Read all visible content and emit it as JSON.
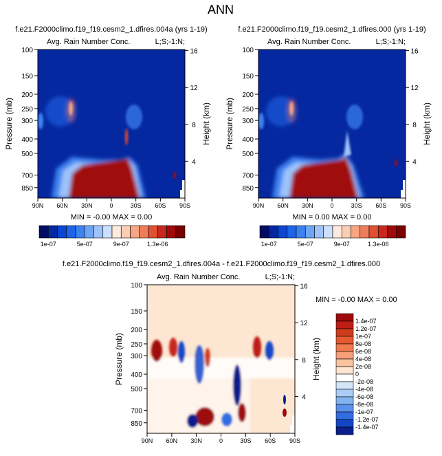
{
  "page_title": "ANN",
  "chart_data": [
    {
      "type": "heatmap",
      "title": "f.e21.F2000climo.f19_f19.cesm2_1.dfires.004a (yrs 1-19)",
      "subtitle_left": "Avg. Rain Number Conc.",
      "subtitle_right": "L;S;-1:N;",
      "xlabel": "",
      "ylabel": "Pressure (mb)",
      "y2label": "Height (km)",
      "x_ticks": [
        "90N",
        "60N",
        "30N",
        "0",
        "30S",
        "60S",
        "90S"
      ],
      "x_lim": [
        90,
        -90
      ],
      "y_ticks": [
        100,
        150,
        200,
        250,
        300,
        400,
        500,
        700,
        850
      ],
      "y_lim": [
        1000,
        100
      ],
      "y_scale": "log",
      "y2_ticks": [
        4,
        8,
        12,
        16
      ],
      "minmax_text": "MIN = -0.00   MAX =  0.00",
      "colorbar": {
        "orientation": "horizontal",
        "labels": [
          "1e-07",
          "5e-07",
          "9e-07",
          "1.3e-06"
        ],
        "colors": [
          "#020c64",
          "#0528a0",
          "#0a46d2",
          "#1e64e6",
          "#3c82f0",
          "#6ea5f5",
          "#9ec3fa",
          "#ccdffc",
          "#fdeade",
          "#fbcdb3",
          "#f7a582",
          "#f07d5a",
          "#e05032",
          "#c8281e",
          "#a00a0a",
          "#7a0000"
        ]
      }
    },
    {
      "type": "heatmap",
      "title": "f.e21.F2000climo.f19_f19.cesm2_1.dfires.000 (yrs 1-19)",
      "subtitle_left": "Avg. Rain Number Conc.",
      "subtitle_right": "L;S;-1:N;",
      "xlabel": "",
      "ylabel": "Pressure (mb)",
      "y2label": "Height (km)",
      "x_ticks": [
        "90N",
        "60N",
        "30N",
        "0",
        "30S",
        "60S",
        "90S"
      ],
      "x_lim": [
        90,
        -90
      ],
      "y_ticks": [
        100,
        150,
        200,
        250,
        300,
        400,
        500,
        700,
        850
      ],
      "y_lim": [
        1000,
        100
      ],
      "y_scale": "log",
      "y2_ticks": [
        4,
        8,
        12,
        16
      ],
      "minmax_text": "MIN =  0.00   MAX =  0.00",
      "colorbar": {
        "orientation": "horizontal",
        "labels": [
          "1e-07",
          "5e-07",
          "9e-07",
          "1.3e-06"
        ],
        "colors": [
          "#020c64",
          "#0528a0",
          "#0a46d2",
          "#1e64e6",
          "#3c82f0",
          "#6ea5f5",
          "#9ec3fa",
          "#ccdffc",
          "#fdeade",
          "#fbcdb3",
          "#f7a582",
          "#f07d5a",
          "#e05032",
          "#c8281e",
          "#a00a0a",
          "#7a0000"
        ]
      }
    },
    {
      "type": "heatmap",
      "title": "f.e21.F2000climo.f19_f19.cesm2_1.dfires.004a - f.e21.F2000climo.f19_f19.cesm2_1.dfires.000",
      "subtitle_left": "Avg. Rain Number Conc.",
      "subtitle_right": "L;S;-1:N;",
      "xlabel": "",
      "ylabel": "Pressure (mb)",
      "y2label": "Height (km)",
      "x_ticks": [
        "90N",
        "60N",
        "30N",
        "0",
        "30S",
        "60S",
        "90S"
      ],
      "x_lim": [
        90,
        -90
      ],
      "y_ticks": [
        100,
        150,
        200,
        250,
        300,
        400,
        500,
        700,
        850
      ],
      "y_lim": [
        1000,
        100
      ],
      "y_scale": "log",
      "y2_ticks": [
        4,
        8,
        12,
        16
      ],
      "minmax_text": "MIN = -0.00   MAX =  0.00",
      "colorbar": {
        "orientation": "vertical",
        "labels": [
          "1.4e-07",
          "1.2e-07",
          "1e-07",
          "8e-08",
          "6e-08",
          "4e-08",
          "2e-08",
          "0",
          "-2e-08",
          "-4e-08",
          "-6e-08",
          "-8e-08",
          "-1e-07",
          "-1.2e-07",
          "-1.4e-07"
        ],
        "colors": [
          "#9e0a0a",
          "#be1e14",
          "#d23c1e",
          "#e65a32",
          "#f07c50",
          "#f5a078",
          "#fac3a0",
          "#fde6d2",
          "#ffffff",
          "#d2e6fa",
          "#aacdf5",
          "#82b4f0",
          "#5a91eb",
          "#326ee1",
          "#1446c8",
          "#0a1e8c"
        ]
      }
    }
  ]
}
